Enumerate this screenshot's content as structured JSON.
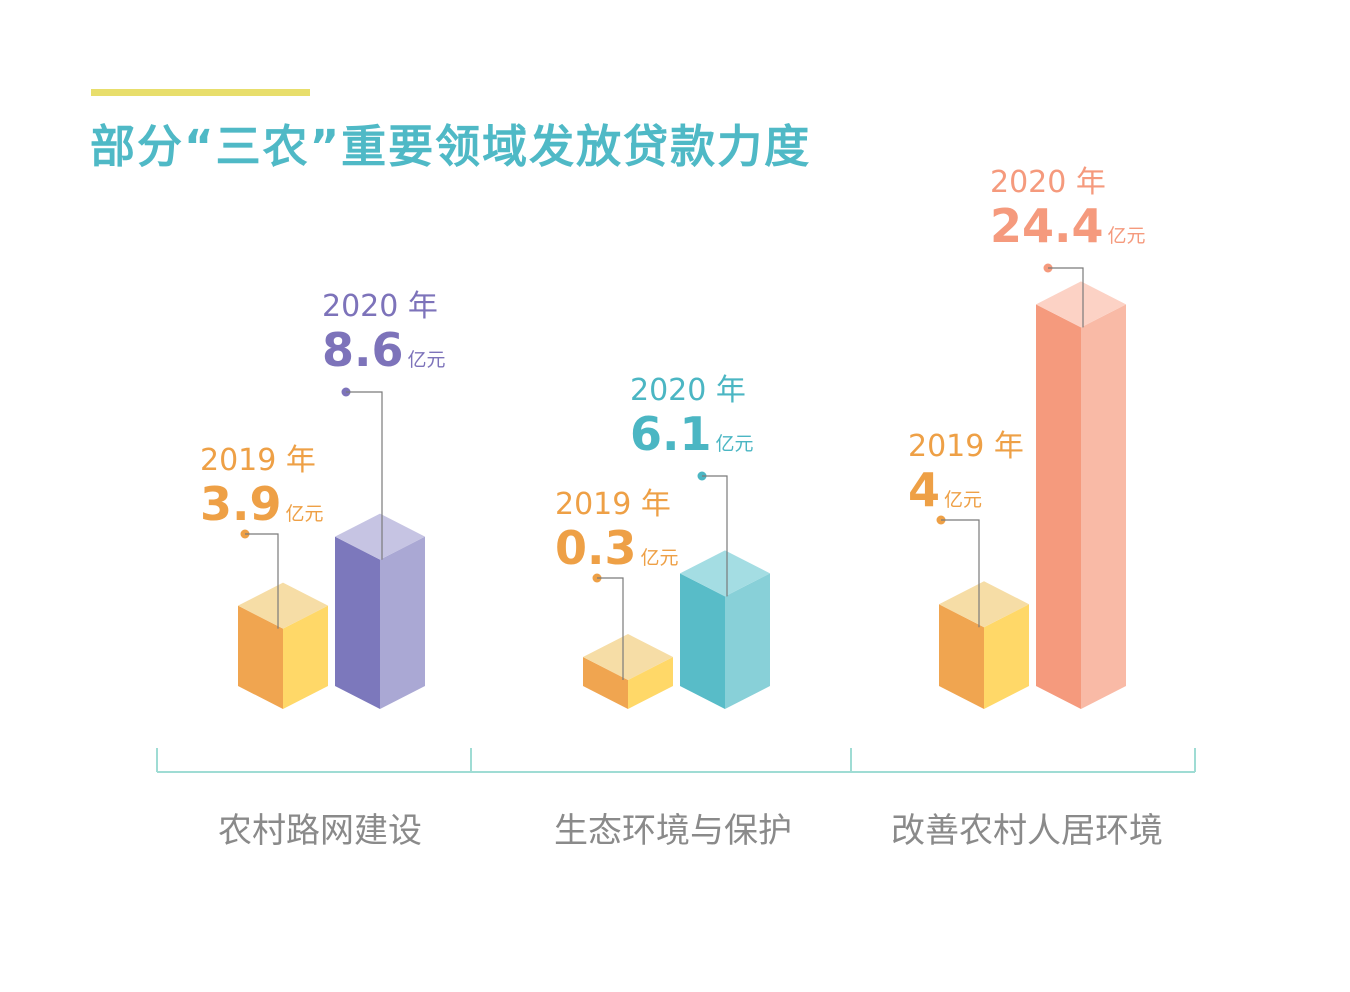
{
  "title": "部分“三农”重要领域发放贷款力度",
  "chart_data": {
    "type": "bar",
    "title": "部分“三农”重要领域发放贷款力度",
    "categories": [
      "农村路网建设",
      "生态环境与保护",
      "改善农村人居环境"
    ],
    "unit": "亿元",
    "series": [
      {
        "name": "2019 年",
        "values": [
          3.9,
          0.3,
          4
        ],
        "labels": [
          "3.9",
          "0.3",
          "4"
        ]
      },
      {
        "name": "2020 年",
        "values": [
          8.6,
          6.1,
          24.4
        ],
        "labels": [
          "8.6",
          "6.1",
          "24.4"
        ]
      }
    ],
    "colors": {
      "title": "#4fb9c6",
      "accent": "#e8de6c",
      "axis": "#9fdcd4",
      "category_text": "#8a8a8a",
      "bar_2019": [
        "#f0a550",
        "#ffd868",
        "#f6dda6"
      ],
      "label_2019": "#eea046",
      "bar_2020": [
        {
          "left": "#7c78bc",
          "right": "#aaa8d4",
          "top": "#c6c4e3",
          "label": "#7d73ba"
        },
        {
          "left": "#58bcc8",
          "right": "#88d0d8",
          "top": "#a4dde3",
          "label": "#4bb6c3"
        },
        {
          "left": "#f59a7d",
          "right": "#f9baa6",
          "top": "#fcd2c5",
          "label": "#f59a7d"
        }
      ]
    }
  }
}
